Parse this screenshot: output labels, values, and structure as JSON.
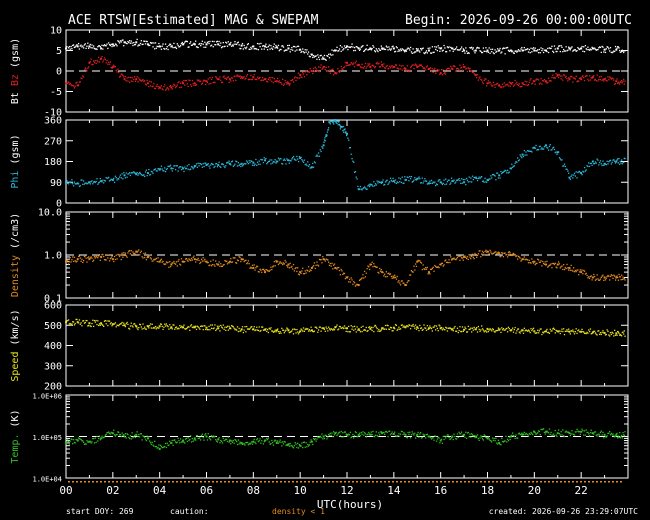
{
  "header": {
    "title": "ACE RTSW[Estimated] MAG & SWEPAM",
    "begin": "Begin: 2026-09-26 00:00:00UTC"
  },
  "footer": {
    "start_doy": "start DOY: 269",
    "caution": "caution:",
    "density_note": "density < 1",
    "created": "created: 2026-09-26 23:29:07UTC"
  },
  "colors": {
    "background": "#000000",
    "frame": "#ffffff",
    "bt": "#ffffff",
    "bz": "#e02020",
    "phi": "#2ab8d8",
    "density": "#e08a20",
    "speed": "#e6e020",
    "temp": "#30c020"
  },
  "chart_data": {
    "type": "scatter",
    "xlabel": "UTC(hours)",
    "xlim": [
      0,
      24
    ],
    "x_ticks": [
      0,
      2,
      4,
      6,
      8,
      10,
      12,
      14,
      16,
      18,
      20,
      22
    ],
    "x_tick_labels": [
      "00",
      "02",
      "04",
      "06",
      "08",
      "10",
      "12",
      "14",
      "16",
      "18",
      "20",
      "22"
    ],
    "panels": [
      {
        "id": "mag",
        "ylabel_parts": [
          {
            "text": "Bt",
            "color": "#ffffff"
          },
          {
            "text": "Bz",
            "color": "#e02020"
          },
          {
            "text": "(gsm)",
            "color": "#ffffff"
          }
        ],
        "scale": "linear",
        "ylim": [
          -10,
          10
        ],
        "y_ticks": [
          -10,
          -5,
          0,
          5,
          10
        ],
        "y_tick_labels": [
          "-10",
          "-5",
          "0",
          "5",
          "10"
        ],
        "ref_line": 0,
        "series": [
          {
            "name": "Bt",
            "color": "#ffffff",
            "x": [
              0,
              0.5,
              1,
              1.5,
              2,
              2.5,
              3,
              3.5,
              4,
              4.5,
              5,
              5.5,
              6,
              6.5,
              7,
              7.5,
              8,
              8.5,
              9,
              9.5,
              10,
              10.5,
              11,
              11.5,
              12,
              12.5,
              13,
              13.5,
              14,
              14.5,
              15,
              15.5,
              16,
              16.5,
              17,
              17.5,
              18,
              18.5,
              19,
              19.5,
              20,
              20.5,
              21,
              21.5,
              22,
              22.5,
              23,
              23.5
            ],
            "y": [
              5.5,
              6,
              6,
              5.5,
              6.5,
              7,
              7,
              6.5,
              6,
              6,
              6.5,
              6.5,
              6.5,
              6.5,
              6.5,
              6.2,
              6,
              6,
              5.8,
              5.5,
              5.2,
              4,
              3,
              5,
              6,
              5.5,
              5.5,
              5.5,
              5.5,
              5,
              5,
              5,
              5.5,
              5.5,
              5,
              5,
              5,
              5,
              5,
              5,
              5,
              5,
              5.5,
              5.5,
              5.5,
              5.5,
              5.2,
              5.2
            ]
          },
          {
            "name": "Bz",
            "color": "#e02020",
            "x": [
              0,
              0.5,
              1,
              1.5,
              2,
              2.5,
              3,
              3.5,
              4,
              4.5,
              5,
              5.5,
              6,
              6.5,
              7,
              7.5,
              8,
              8.5,
              9,
              9.5,
              10,
              10.5,
              11,
              11.5,
              12,
              12.5,
              13,
              13.5,
              14,
              14.5,
              15,
              15.5,
              16,
              16.5,
              17,
              17.5,
              18,
              18.5,
              19,
              19.5,
              20,
              20.5,
              21,
              21.5,
              22,
              22.5,
              23,
              23.5
            ],
            "y": [
              -3,
              -3.5,
              2,
              3,
              1,
              -2,
              -2,
              -3,
              -4,
              -4,
              -3,
              -3,
              -2.5,
              -2,
              -2,
              -1.5,
              -1.5,
              -2,
              -2.5,
              -3,
              -1,
              0,
              1,
              -0.5,
              2,
              1.5,
              1,
              1.5,
              1,
              0.5,
              1,
              0.5,
              -0.5,
              0.5,
              1,
              -1,
              -3,
              -3.5,
              -3,
              -3,
              -2.5,
              -2.5,
              -1,
              -2,
              -2,
              -1.5,
              -2,
              -2.5
            ]
          }
        ]
      },
      {
        "id": "phi",
        "ylabel_parts": [
          {
            "text": "Phi",
            "color": "#2ab8d8"
          },
          {
            "text": "(gsm)",
            "color": "#ffffff"
          }
        ],
        "scale": "linear",
        "ylim": [
          0,
          360
        ],
        "y_ticks": [
          0,
          90,
          180,
          270,
          360
        ],
        "y_tick_labels": [
          "0",
          "90",
          "180",
          "270",
          "360"
        ],
        "series": [
          {
            "name": "Phi",
            "color": "#2ab8d8",
            "x": [
              0,
              0.5,
              1,
              1.5,
              2,
              2.5,
              3,
              3.5,
              4,
              4.5,
              5,
              5.5,
              6,
              6.5,
              7,
              7.5,
              8,
              8.5,
              9,
              9.5,
              10,
              10.5,
              11,
              11.25,
              11.5,
              11.75,
              12,
              12.5,
              13,
              13.5,
              14,
              14.5,
              15,
              15.5,
              16,
              16.5,
              17,
              17.5,
              18,
              18.5,
              19,
              19.5,
              20,
              20.5,
              21,
              21.5,
              22,
              22.5,
              23,
              23.5
            ],
            "y": [
              90,
              85,
              90,
              95,
              100,
              120,
              125,
              130,
              145,
              150,
              150,
              160,
              165,
              165,
              170,
              170,
              175,
              185,
              180,
              185,
              195,
              155,
              250,
              350,
              360,
              330,
              300,
              60,
              80,
              90,
              95,
              100,
              105,
              85,
              90,
              95,
              90,
              110,
              100,
              120,
              150,
              210,
              240,
              250,
              220,
              110,
              130,
              180,
              170,
              180
            ]
          }
        ]
      },
      {
        "id": "density",
        "ylabel_parts": [
          {
            "text": "Density",
            "color": "#e08a20"
          },
          {
            "text": "(/cm3)",
            "color": "#ffffff"
          }
        ],
        "scale": "log",
        "ylim": [
          0.1,
          10
        ],
        "y_ticks": [
          0.1,
          1,
          10
        ],
        "y_tick_labels": [
          "0.1",
          "1.0",
          "10.0"
        ],
        "ref_line": 1,
        "series": [
          {
            "name": "Density",
            "color": "#e08a20",
            "x": [
              0,
              0.5,
              1,
              1.5,
              2,
              2.5,
              3,
              3.5,
              4,
              4.5,
              5,
              5.5,
              6,
              6.5,
              7,
              7.5,
              8,
              8.5,
              9,
              9.5,
              10,
              10.5,
              11,
              11.5,
              12,
              12.5,
              13,
              13.5,
              14,
              14.5,
              15,
              15.5,
              16,
              16.5,
              17,
              17.5,
              18,
              18.5,
              19,
              19.5,
              20,
              20.5,
              21,
              21.5,
              22,
              22.5,
              23,
              23.5
            ],
            "y": [
              0.7,
              0.8,
              0.8,
              0.9,
              0.8,
              1.0,
              1.2,
              0.9,
              0.7,
              0.6,
              0.7,
              0.8,
              0.7,
              0.6,
              0.7,
              0.8,
              0.5,
              0.4,
              0.7,
              0.6,
              0.4,
              0.5,
              0.8,
              0.5,
              0.3,
              0.2,
              0.6,
              0.4,
              0.3,
              0.2,
              0.7,
              0.4,
              0.6,
              0.8,
              0.9,
              1.0,
              1.2,
              1.1,
              1.0,
              0.8,
              0.7,
              0.6,
              0.6,
              0.5,
              0.4,
              0.3,
              0.3,
              0.3
            ]
          }
        ]
      },
      {
        "id": "speed",
        "ylabel_parts": [
          {
            "text": "Speed",
            "color": "#e6e020"
          },
          {
            "text": "(km/s)",
            "color": "#ffffff"
          }
        ],
        "scale": "linear",
        "ylim": [
          200,
          600
        ],
        "y_ticks": [
          200,
          300,
          400,
          500,
          600
        ],
        "y_tick_labels": [
          "200",
          "300",
          "400",
          "500",
          "600"
        ],
        "series": [
          {
            "name": "Speed",
            "color": "#e6e020",
            "x": [
              0,
              0.5,
              1,
              1.5,
              2,
              2.5,
              3,
              3.5,
              4,
              4.5,
              5,
              5.5,
              6,
              6.5,
              7,
              7.5,
              8,
              8.5,
              9,
              9.5,
              10,
              10.5,
              11,
              11.5,
              12,
              12.5,
              13,
              13.5,
              14,
              14.5,
              15,
              15.5,
              16,
              16.5,
              17,
              17.5,
              18,
              18.5,
              19,
              19.5,
              20,
              20.5,
              21,
              21.5,
              22,
              22.5,
              23,
              23.5
            ],
            "y": [
              515,
              515,
              510,
              510,
              505,
              500,
              495,
              495,
              495,
              490,
              490,
              490,
              488,
              485,
              485,
              480,
              480,
              478,
              475,
              475,
              470,
              475,
              485,
              490,
              485,
              480,
              482,
              485,
              488,
              490,
              490,
              485,
              485,
              480,
              478,
              480,
              482,
              478,
              475,
              475,
              470,
              470,
              470,
              468,
              468,
              465,
              462,
              460
            ]
          }
        ]
      },
      {
        "id": "temp",
        "ylabel_parts": [
          {
            "text": "Temp.",
            "color": "#30c020"
          },
          {
            "text": "(K)",
            "color": "#ffffff"
          }
        ],
        "scale": "log",
        "ylim": [
          10000,
          1000000
        ],
        "y_ticks": [
          10000,
          100000,
          1000000
        ],
        "y_tick_labels": [
          "1.0E+04",
          "1.0E+05",
          "1.0E+06"
        ],
        "ref_line": 100000,
        "series": [
          {
            "name": "Temp.",
            "color": "#30c020",
            "x": [
              0,
              0.5,
              1,
              1.5,
              2,
              2.5,
              3,
              3.5,
              4,
              4.5,
              5,
              5.5,
              6,
              6.5,
              7,
              7.5,
              8,
              8.5,
              9,
              9.5,
              10,
              10.5,
              11,
              11.5,
              12,
              12.5,
              13,
              13.5,
              14,
              14.5,
              15,
              15.5,
              16,
              16.5,
              17,
              17.5,
              18,
              18.5,
              19,
              19.5,
              20,
              20.5,
              21,
              21.5,
              22,
              22.5,
              23,
              23.5
            ],
            "y": [
              70000,
              80000,
              75000,
              90000,
              120000,
              100000,
              110000,
              90000,
              50000,
              70000,
              80000,
              90000,
              100000,
              85000,
              80000,
              70000,
              75000,
              80000,
              70000,
              65000,
              60000,
              75000,
              100000,
              120000,
              110000,
              110000,
              110000,
              120000,
              115000,
              110000,
              110000,
              100000,
              80000,
              100000,
              110000,
              100000,
              90000,
              70000,
              100000,
              110000,
              130000,
              130000,
              120000,
              120000,
              130000,
              120000,
              110000,
              110000
            ]
          }
        ]
      }
    ]
  }
}
